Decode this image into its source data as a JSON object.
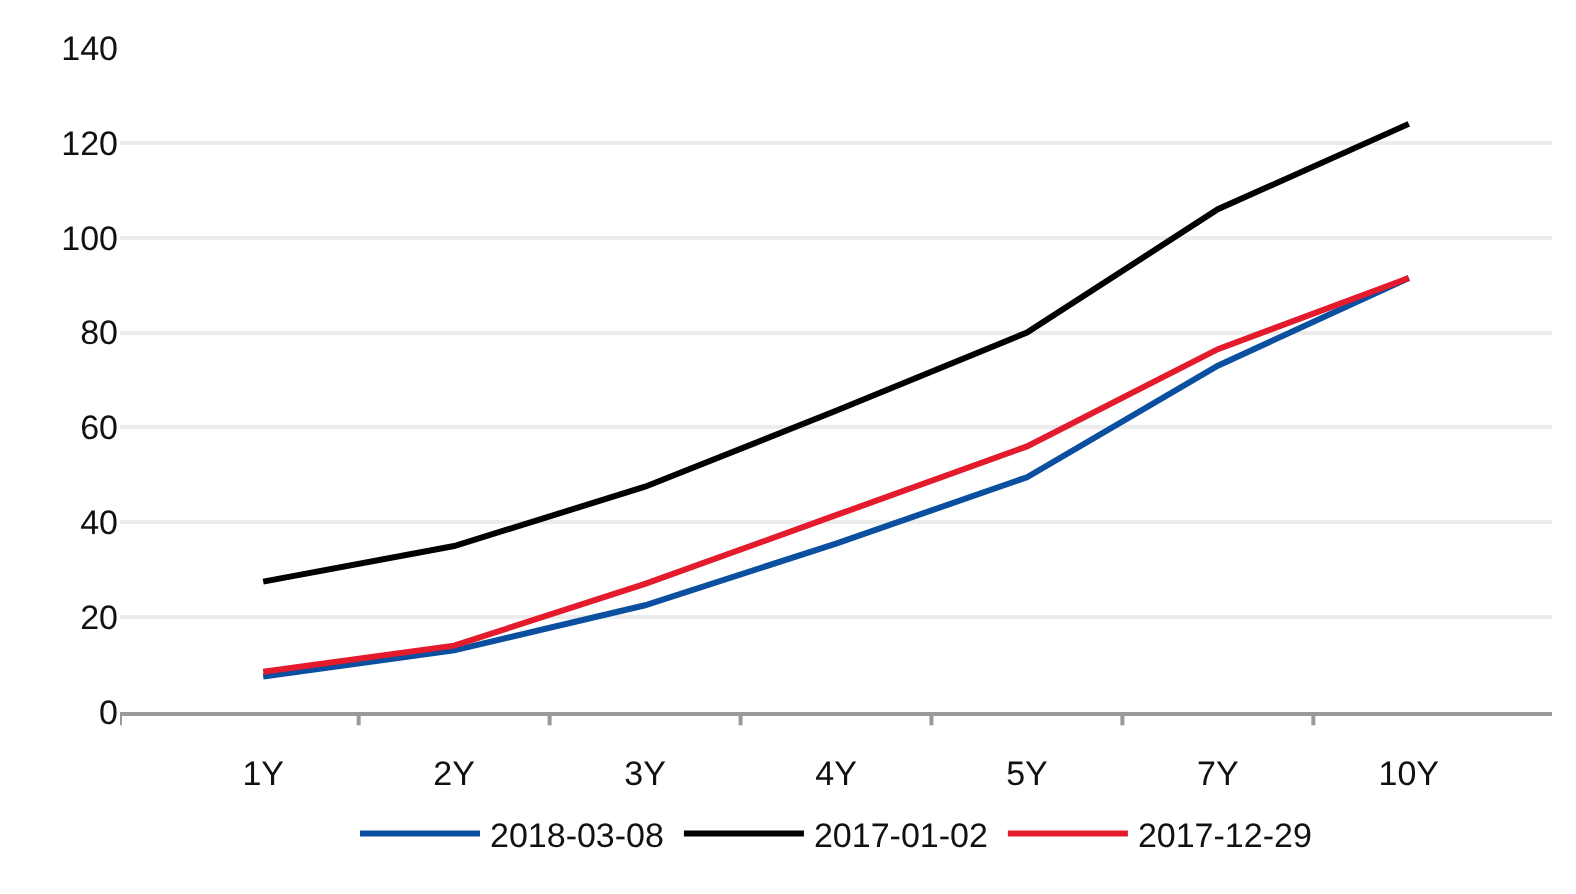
{
  "chart_data": {
    "type": "line",
    "categories": [
      "1Y",
      "2Y",
      "3Y",
      "4Y",
      "5Y",
      "7Y",
      "10Y"
    ],
    "series": [
      {
        "name": "2018-03-08",
        "color": "#0a4fa0",
        "values": [
          7.5,
          13,
          22.5,
          35.5,
          49.5,
          73,
          91.5
        ]
      },
      {
        "name": "2017-01-02",
        "color": "#000000",
        "values": [
          27.5,
          35,
          47.5,
          63.5,
          80,
          106,
          124
        ]
      },
      {
        "name": "2017-12-29",
        "color": "#e31b2c",
        "values": [
          8.5,
          14,
          27,
          41.5,
          56,
          76.5,
          91.5
        ]
      }
    ],
    "ylim": [
      0,
      140
    ],
    "yticks": [
      0,
      20,
      40,
      60,
      80,
      100,
      120,
      140
    ],
    "grid": "y",
    "legend": "bottom",
    "marker": "none",
    "line_style": "solid"
  }
}
